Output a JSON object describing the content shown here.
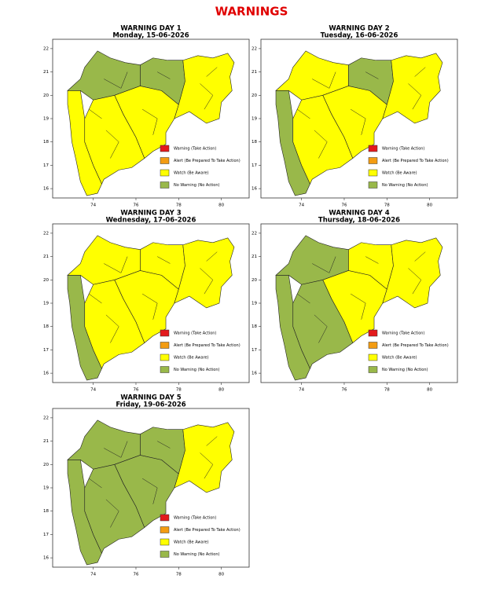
{
  "title": "WARNINGS",
  "xlim": [
    72.1,
    81.3
  ],
  "ylim": [
    15.6,
    22.4
  ],
  "xticks": [
    74,
    76,
    78,
    80
  ],
  "yticks": [
    16,
    17,
    18,
    19,
    20,
    21,
    22
  ],
  "legend": [
    {
      "label": "Warning (Take Action)",
      "color": "#e31a1c"
    },
    {
      "label": "Alert (Be Prepared To Take Action)",
      "color": "#f39c12"
    },
    {
      "label": "Watch (Be Aware)",
      "color": "#ffff00"
    },
    {
      "label": "No Warning (No Action)",
      "color": "#99b84a"
    }
  ],
  "panels": [
    {
      "title": "WARNING DAY 1",
      "subtitle": "Monday, 15-06-2026",
      "region_colors": [
        "#ffff00",
        "#99b84a",
        "#ffff00",
        "#ffff00",
        "#99b84a",
        "#ffff00"
      ]
    },
    {
      "title": "WARNING DAY 2",
      "subtitle": "Tuesday, 16-06-2026",
      "region_colors": [
        "#99b84a",
        "#ffff00",
        "#ffff00",
        "#ffff00",
        "#99b84a",
        "#ffff00"
      ]
    },
    {
      "title": "WARNING DAY 3",
      "subtitle": "Wednesday, 17-06-2026",
      "region_colors": [
        "#99b84a",
        "#ffff00",
        "#ffff00",
        "#ffff00",
        "#ffff00",
        "#ffff00"
      ]
    },
    {
      "title": "WARNING DAY 4",
      "subtitle": "Thursday, 18-06-2026",
      "region_colors": [
        "#99b84a",
        "#99b84a",
        "#99b84a",
        "#ffff00",
        "#ffff00",
        "#ffff00"
      ]
    },
    {
      "title": "WARNING DAY 5",
      "subtitle": "Friday, 19-06-2026",
      "region_colors": [
        "#99b84a",
        "#99b84a",
        "#99b84a",
        "#99b84a",
        "#99b84a",
        "#ffff00"
      ]
    }
  ]
}
